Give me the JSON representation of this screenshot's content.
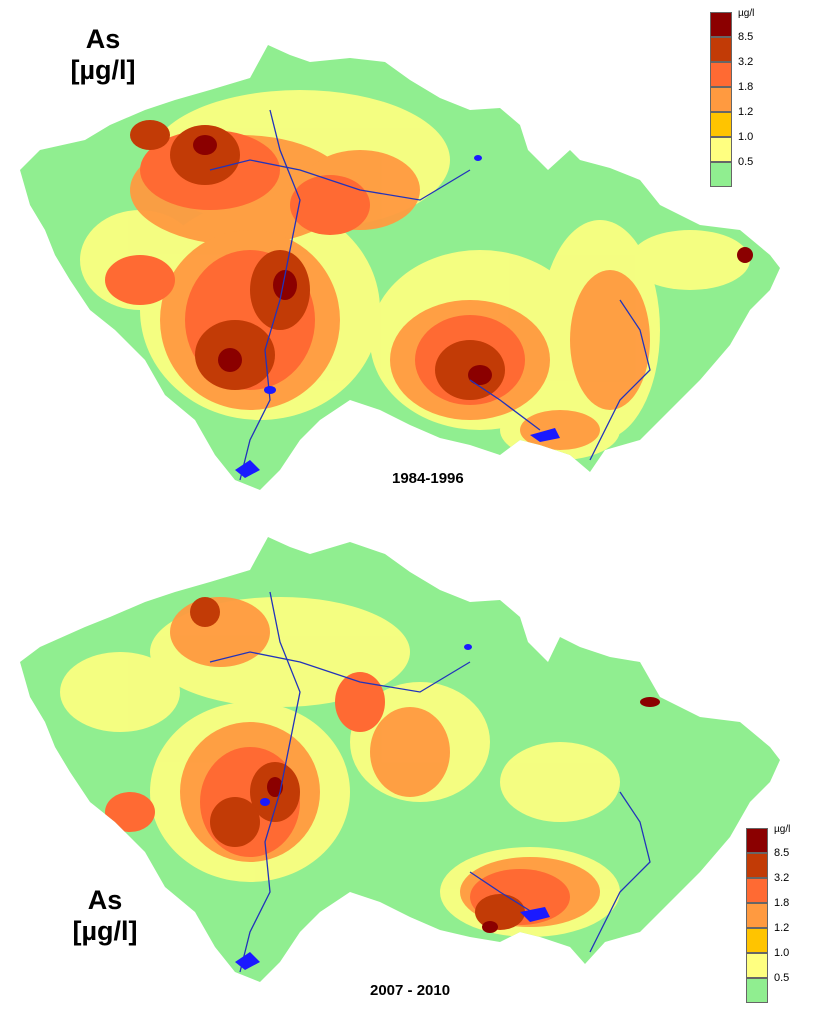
{
  "colors": {
    "water": "#1a1aff",
    "river": "#2233bb",
    "lowest": "#90ee90",
    "classes": [
      "#90ee90",
      "#ffff80",
      "#ffc400",
      "#ff9a40",
      "#ff6a33",
      "#c23b06",
      "#8b0000"
    ]
  },
  "maps": [
    {
      "variable": "As",
      "unit": "[µg/l]",
      "period": "1984-1996",
      "legend": {
        "unit": "µg/l",
        "ticks": [
          "8.5",
          "3.2",
          "1.8",
          "1.2",
          "1.0",
          "0.5"
        ]
      }
    },
    {
      "variable": "As",
      "unit": "[µg/l]",
      "period": "2007 - 2010",
      "legend": {
        "unit": "µg/l",
        "ticks": [
          "8.5",
          "3.2",
          "1.8",
          "1.2",
          "1.0",
          "0.5"
        ]
      }
    }
  ]
}
